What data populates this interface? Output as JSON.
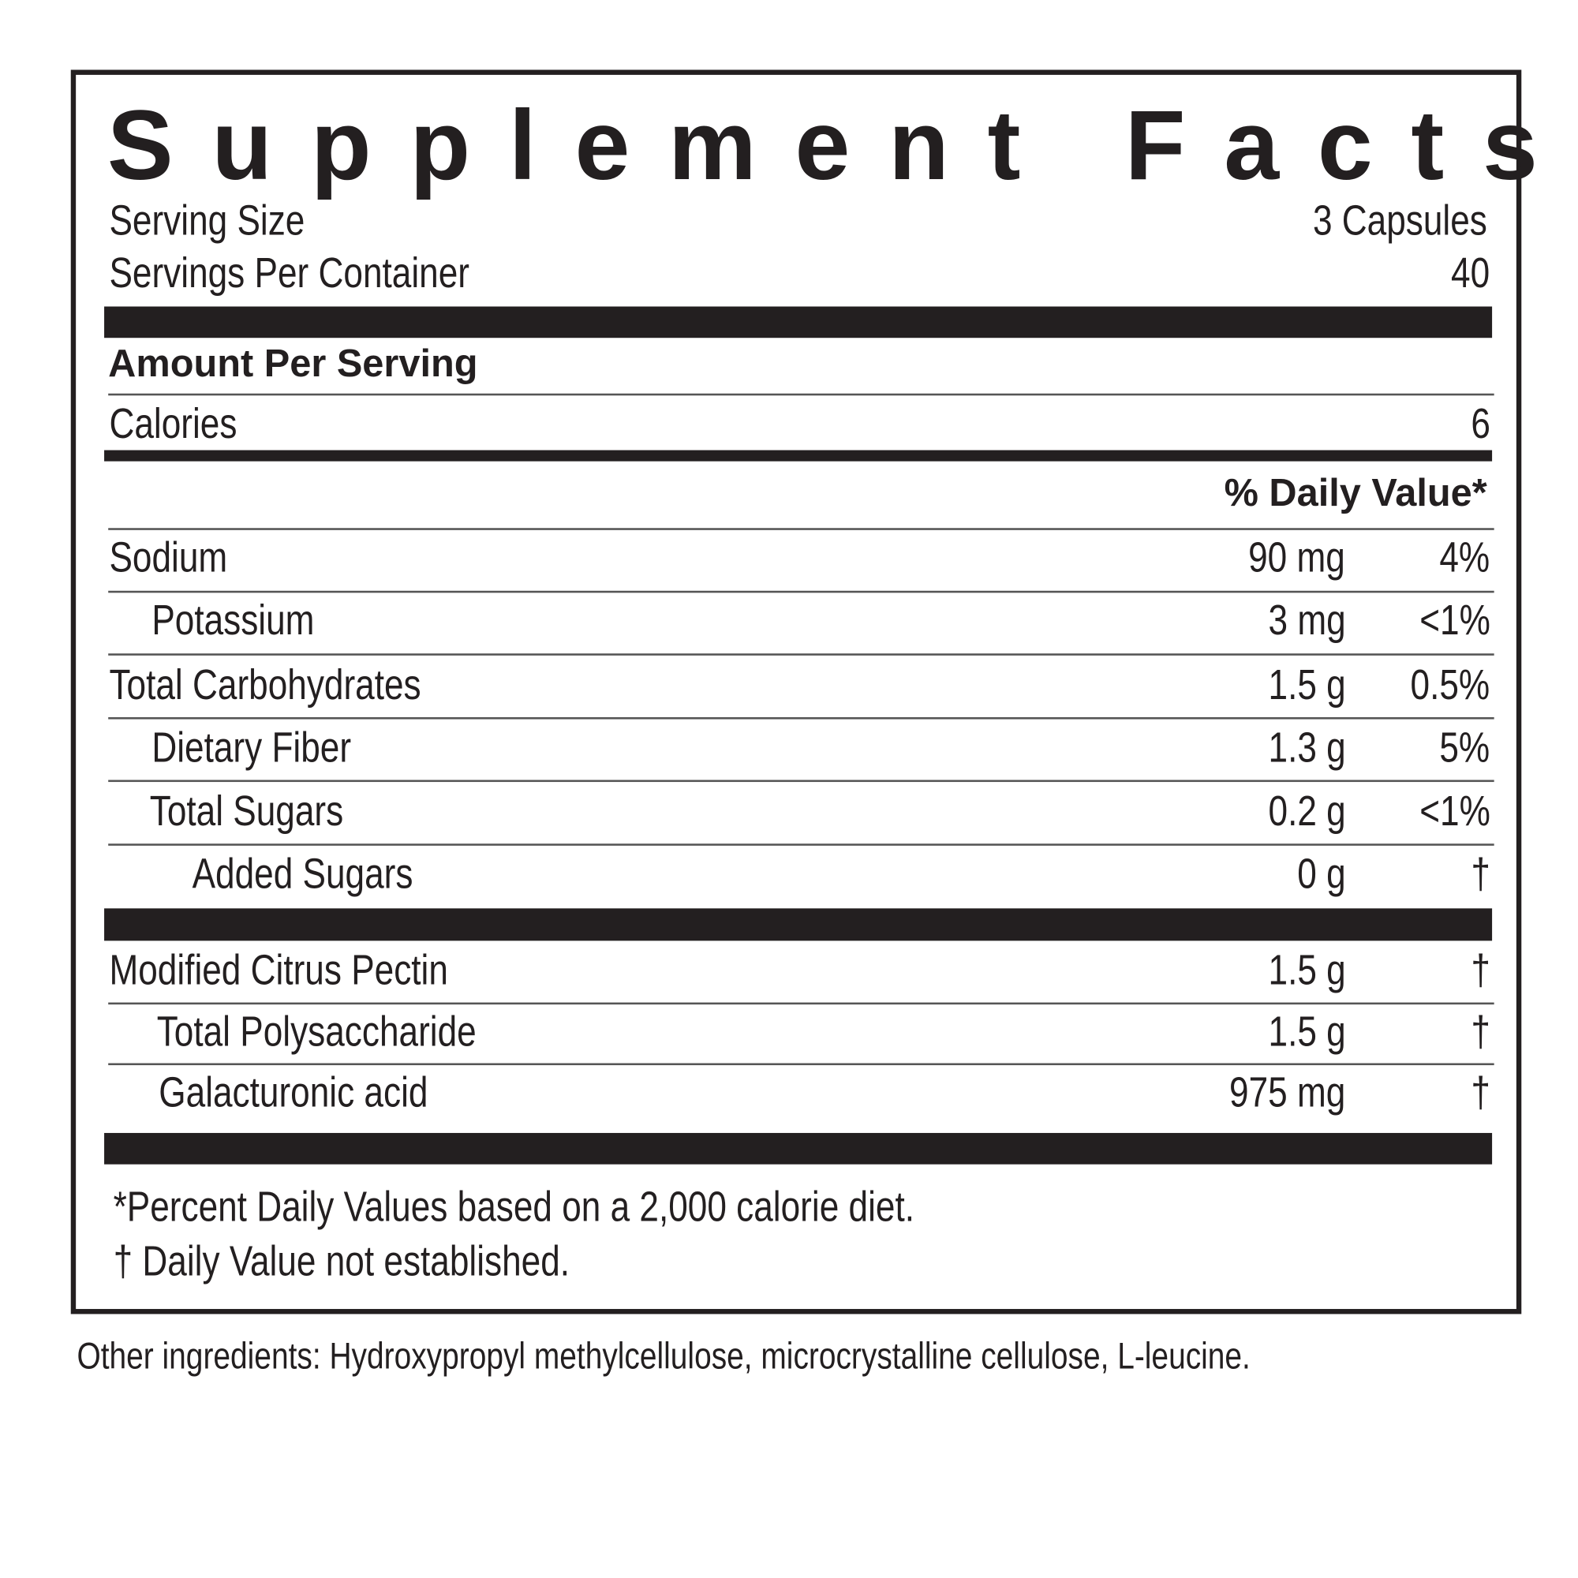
{
  "title": "Supplement Facts",
  "serving_size_label": "Serving Size",
  "serving_size_value": "3 Capsules",
  "servings_per_container_label": "Servings Per Container",
  "servings_per_container_value": "40",
  "amount_per_serving": "Amount Per Serving",
  "calories_label": "Calories",
  "calories_value": "6",
  "daily_value_header": "% Daily Value*",
  "nutrients": [
    {
      "name": "Sodium",
      "amount": "90 mg",
      "dv": "4%"
    },
    {
      "name": "Potassium",
      "amount": "3 mg",
      "dv": "<1%"
    },
    {
      "name": "Total Carbohydrates",
      "amount": "1.5 g",
      "dv": "0.5%"
    },
    {
      "name": "Dietary Fiber",
      "amount": "1.3 g",
      "dv": "5%"
    },
    {
      "name": "Total Sugars",
      "amount": "0.2 g",
      "dv": "<1%"
    },
    {
      "name": "Added Sugars",
      "amount": "0 g",
      "dv": "†"
    }
  ],
  "ingredients": [
    {
      "name": "Modified Citrus Pectin",
      "amount": "1.5 g",
      "dv": "†"
    },
    {
      "name": "Total Polysaccharide",
      "amount": "1.5 g",
      "dv": "†"
    },
    {
      "name": "Galacturonic acid",
      "amount": "975 mg",
      "dv": "†"
    }
  ],
  "footnote_1": "*Percent Daily Values based on a 2,000 calorie diet.",
  "footnote_2": "† Daily Value not established.",
  "other_ingredients": "Other ingredients: Hydroxypropyl methylcellulose, microcrystalline cellulose, L-leucine."
}
